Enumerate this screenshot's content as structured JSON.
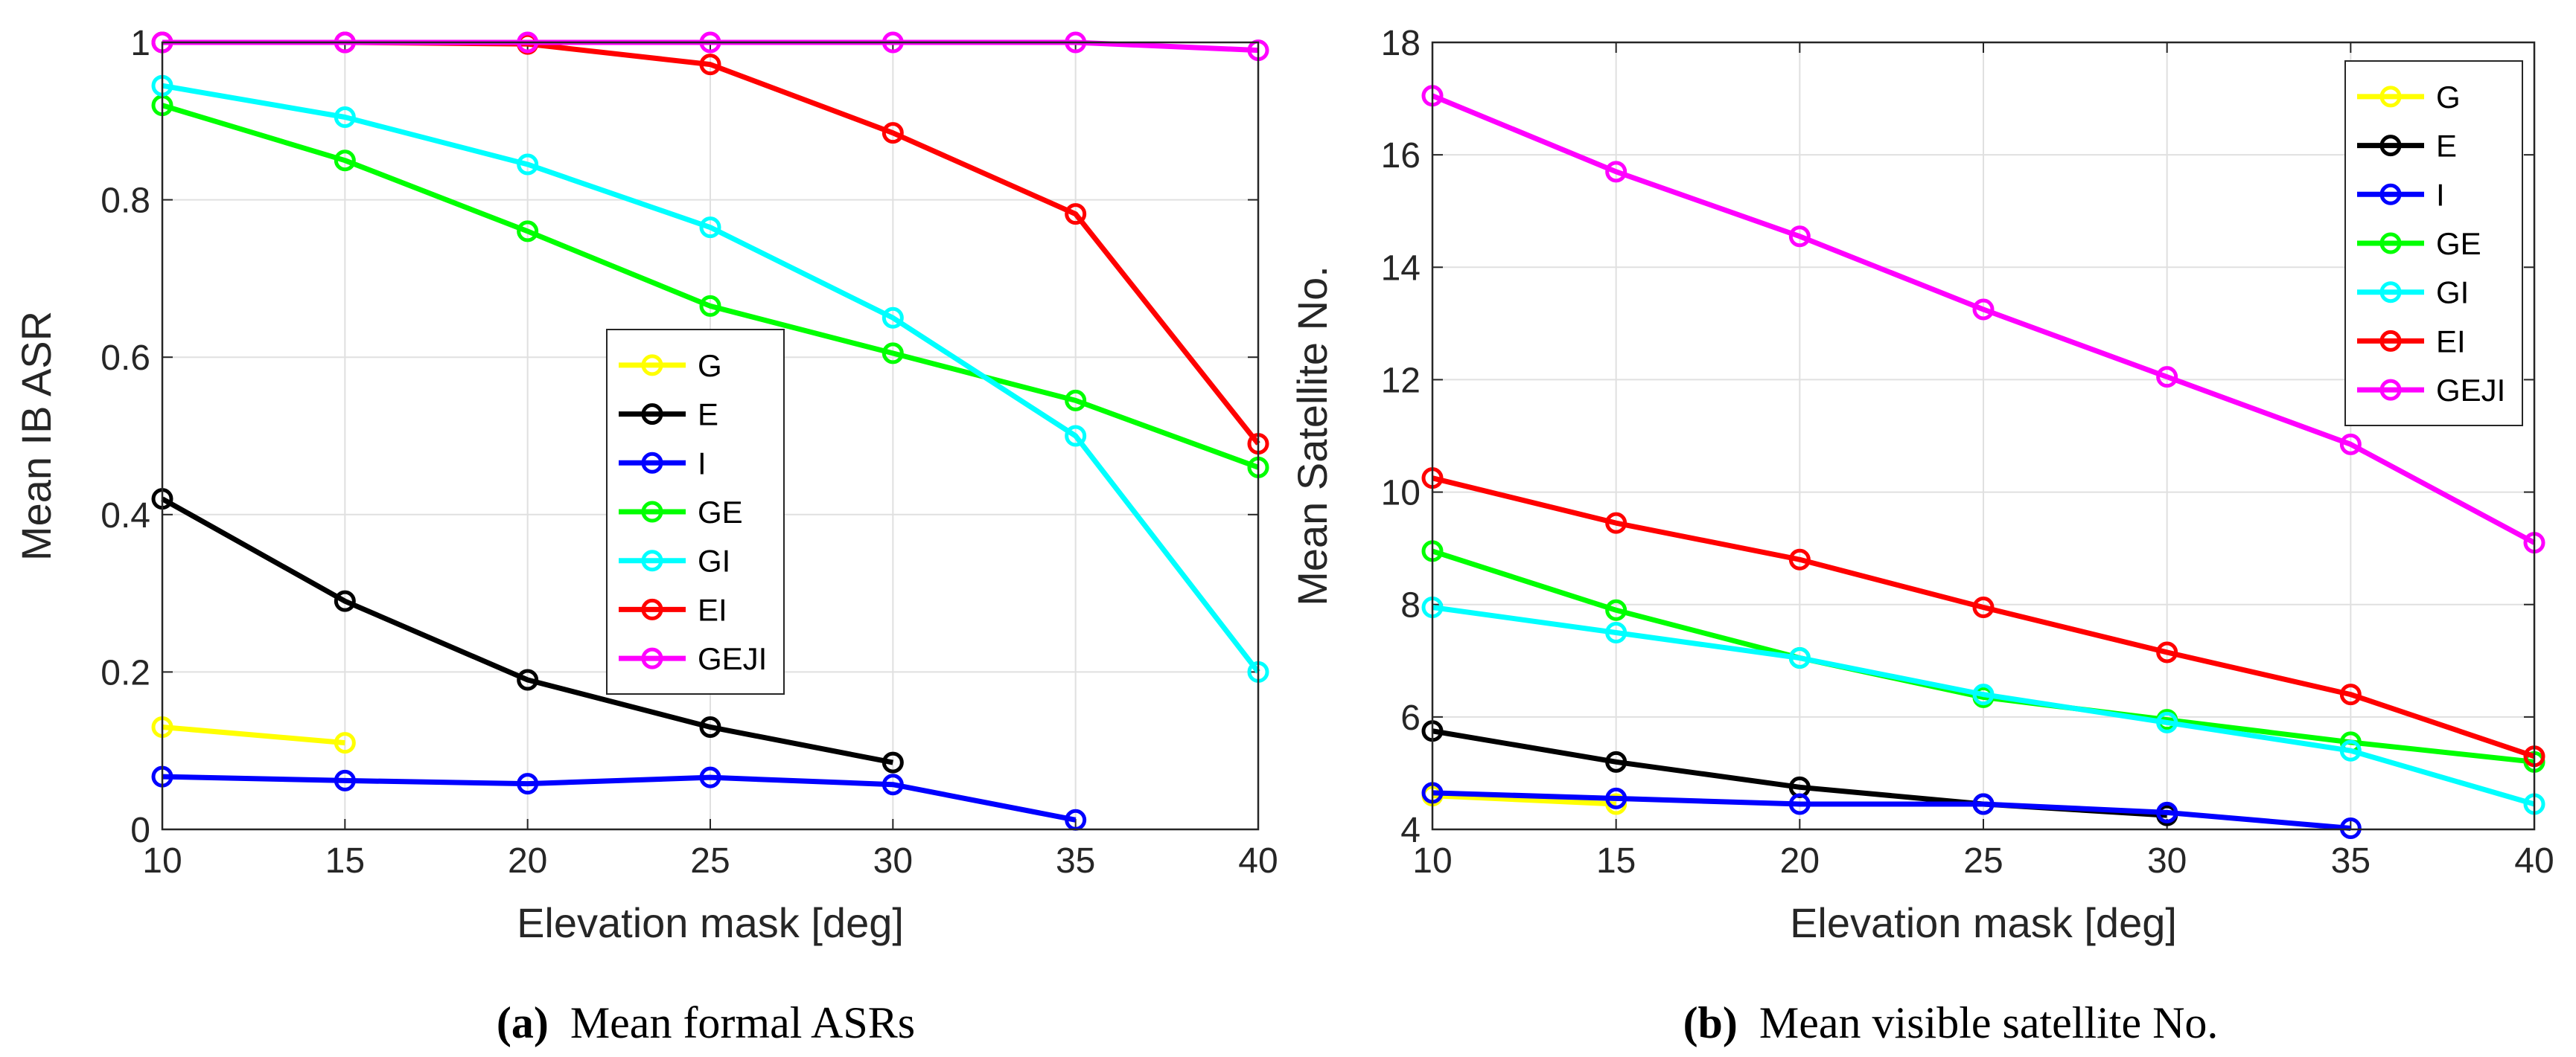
{
  "colors": {
    "G": "#ffff00",
    "E": "#000000",
    "I": "#0000ff",
    "GE": "#00ff00",
    "GI": "#00ffff",
    "EI": "#ff0000",
    "GEJI": "#ff00ff"
  },
  "captions": {
    "a_label": "(a)",
    "a_text": "Mean formal ASRs",
    "b_label": "(b)",
    "b_text": "Mean visible satellite No."
  },
  "chart_data": [
    {
      "type": "line",
      "xlabel": "Elevation mask [deg]",
      "ylabel": "Mean IB ASR",
      "xlim": [
        10,
        40
      ],
      "ylim": [
        0,
        1
      ],
      "xticks": [
        "10",
        "15",
        "20",
        "25",
        "30",
        "35",
        "40"
      ],
      "yticks": [
        "0",
        "0.2",
        "0.4",
        "0.6",
        "0.8",
        "1"
      ],
      "grid": true,
      "legend_position": "center-left",
      "series": [
        {
          "name": "G",
          "x": [
            10,
            15
          ],
          "values": [
            0.13,
            0.11
          ]
        },
        {
          "name": "E",
          "x": [
            10,
            15,
            20,
            25,
            30
          ],
          "values": [
            0.42,
            0.29,
            0.19,
            0.13,
            0.085
          ]
        },
        {
          "name": "I",
          "x": [
            10,
            15,
            20,
            25,
            30,
            35
          ],
          "values": [
            0.067,
            0.062,
            0.058,
            0.066,
            0.057,
            0.012
          ]
        },
        {
          "name": "GE",
          "x": [
            10,
            15,
            20,
            25,
            30,
            35,
            40
          ],
          "values": [
            0.92,
            0.85,
            0.76,
            0.665,
            0.605,
            0.545,
            0.46
          ]
        },
        {
          "name": "GI",
          "x": [
            10,
            15,
            20,
            25,
            30,
            35,
            40
          ],
          "values": [
            0.945,
            0.905,
            0.845,
            0.765,
            0.65,
            0.5,
            0.2
          ]
        },
        {
          "name": "EI",
          "x": [
            10,
            15,
            20,
            25,
            30,
            35,
            40
          ],
          "values": [
            1.0,
            1.0,
            0.998,
            0.972,
            0.885,
            0.782,
            0.49
          ]
        },
        {
          "name": "GEJI",
          "x": [
            10,
            15,
            20,
            25,
            30,
            35,
            40
          ],
          "values": [
            1.0,
            1.0,
            1.0,
            1.0,
            1.0,
            1.0,
            0.99
          ]
        }
      ]
    },
    {
      "type": "line",
      "xlabel": "Elevation mask [deg]",
      "ylabel": "Mean Satellite No.",
      "xlim": [
        10,
        40
      ],
      "ylim": [
        4,
        18
      ],
      "xticks": [
        "10",
        "15",
        "20",
        "25",
        "30",
        "35",
        "40"
      ],
      "yticks": [
        "4",
        "6",
        "8",
        "10",
        "12",
        "14",
        "16",
        "18"
      ],
      "grid": true,
      "legend_position": "top-right",
      "series": [
        {
          "name": "G",
          "x": [
            10,
            15
          ],
          "values": [
            4.6,
            4.45
          ]
        },
        {
          "name": "E",
          "x": [
            10,
            15,
            20,
            25,
            30
          ],
          "values": [
            5.75,
            5.2,
            4.75,
            4.45,
            4.25
          ]
        },
        {
          "name": "I",
          "x": [
            10,
            15,
            20,
            25,
            30,
            35
          ],
          "values": [
            4.65,
            4.55,
            4.45,
            4.45,
            4.3,
            4.02
          ]
        },
        {
          "name": "GE",
          "x": [
            10,
            15,
            20,
            25,
            30,
            35,
            40
          ],
          "values": [
            8.95,
            7.9,
            7.05,
            6.35,
            5.95,
            5.55,
            5.2
          ]
        },
        {
          "name": "GI",
          "x": [
            10,
            15,
            20,
            25,
            30,
            35,
            40
          ],
          "values": [
            7.95,
            7.5,
            7.05,
            6.4,
            5.9,
            5.4,
            4.45
          ]
        },
        {
          "name": "EI",
          "x": [
            10,
            15,
            20,
            25,
            30,
            35,
            40
          ],
          "values": [
            10.25,
            9.45,
            8.8,
            7.95,
            7.15,
            6.4,
            5.3
          ]
        },
        {
          "name": "GEJI",
          "x": [
            10,
            15,
            20,
            25,
            30,
            35,
            40
          ],
          "values": [
            17.05,
            15.7,
            14.55,
            13.25,
            12.05,
            10.85,
            9.1
          ]
        }
      ]
    }
  ]
}
